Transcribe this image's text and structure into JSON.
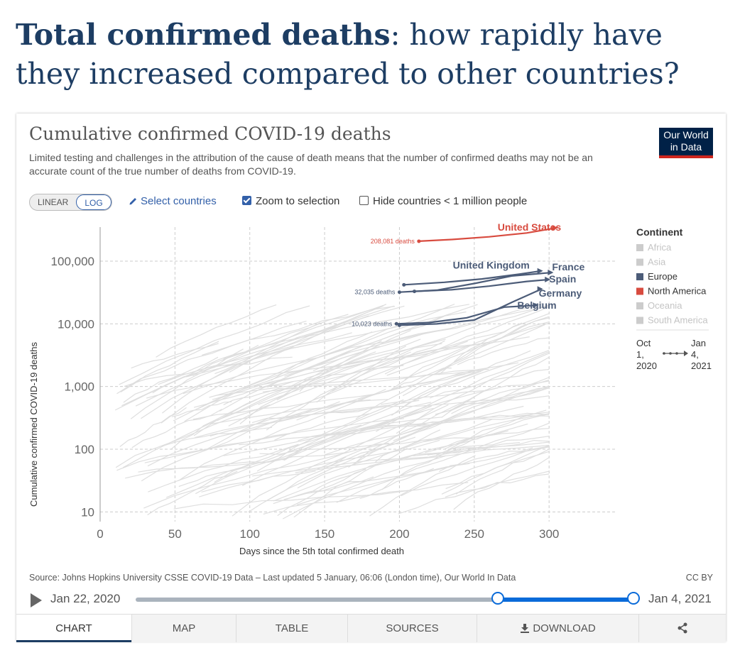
{
  "headline": {
    "bold": "Total confirmed deaths",
    "rest": ": how rapidly have they increased compared to other countries?"
  },
  "card": {
    "title": "Cumulative confirmed COVID-19 deaths",
    "subtitle": "Limited testing and challenges in the attribution of the cause of death means that the number of confirmed deaths may not be an accurate count of the true number of deaths from COVID-19.",
    "logo_line1": "Our World",
    "logo_line2": "in Data"
  },
  "controls": {
    "linear": "LINEAR",
    "log": "LOG",
    "select_countries": "Select countries",
    "zoom_to_selection": "Zoom to selection",
    "hide_small": "Hide countries < 1 million people"
  },
  "legend": {
    "title": "Continent",
    "items": [
      {
        "label": "Africa",
        "color": "#cccccc",
        "dimmed": true
      },
      {
        "label": "Asia",
        "color": "#cccccc",
        "dimmed": true
      },
      {
        "label": "Europe",
        "color": "#4c5c78",
        "dimmed": false
      },
      {
        "label": "North America",
        "color": "#d84b3f",
        "dimmed": false
      },
      {
        "label": "Oceania",
        "color": "#cccccc",
        "dimmed": true
      },
      {
        "label": "South America",
        "color": "#cccccc",
        "dimmed": true
      }
    ],
    "time_start_1": "Oct",
    "time_start_2": "1,",
    "time_start_3": "2020",
    "time_end_1": "Jan",
    "time_end_2": "4,",
    "time_end_3": "2021"
  },
  "chart_data": {
    "type": "line",
    "xlabel": "Days since the 5th total confirmed death",
    "ylabel": "Cumulative confirmed COVID-19 deaths",
    "x_scale": "linear",
    "y_scale": "log",
    "xlim": [
      0,
      345
    ],
    "ylim": [
      7,
      350000
    ],
    "x_ticks": [
      0,
      50,
      100,
      150,
      200,
      250,
      300
    ],
    "y_ticks": [
      10,
      100,
      1000,
      10000,
      100000
    ],
    "y_tick_labels": [
      "10",
      "100",
      "1,000",
      "10,000",
      "100,000"
    ],
    "grid": true,
    "legend_position": "right",
    "series": [
      {
        "name": "United States",
        "color": "#d84b3f",
        "points": [
          [
            213,
            208081
          ],
          [
            235,
            222000
          ],
          [
            260,
            245000
          ],
          [
            285,
            282000
          ],
          [
            305,
            340000
          ]
        ]
      },
      {
        "name": "United Kingdom",
        "color": "#4c5c78",
        "points": [
          [
            203,
            42000
          ],
          [
            230,
            46000
          ],
          [
            255,
            52000
          ],
          [
            280,
            62000
          ],
          [
            295,
            70000
          ]
        ]
      },
      {
        "name": "France",
        "color": "#4c5c78",
        "points": [
          [
            200,
            32035
          ],
          [
            225,
            34500
          ],
          [
            250,
            44000
          ],
          [
            275,
            58000
          ],
          [
            302,
            66000
          ]
        ]
      },
      {
        "name": "Spain",
        "color": "#4c5c78",
        "points": [
          [
            210,
            33000
          ],
          [
            235,
            35000
          ],
          [
            260,
            40000
          ],
          [
            285,
            47500
          ],
          [
            300,
            51000
          ]
        ]
      },
      {
        "name": "Germany",
        "color": "#4c5c78",
        "points": [
          [
            200,
            9500
          ],
          [
            225,
            10000
          ],
          [
            250,
            11500
          ],
          [
            275,
            22000
          ],
          [
            295,
            36000
          ]
        ]
      },
      {
        "name": "Belgium",
        "color": "#4c5c78",
        "points": [
          [
            198,
            10023
          ],
          [
            220,
            10500
          ],
          [
            245,
            12500
          ],
          [
            270,
            18500
          ],
          [
            292,
            19800
          ]
        ]
      }
    ],
    "annotations": [
      {
        "text": "208,081 deaths",
        "x": 213,
        "y": 208081
      },
      {
        "text": "32,035 deaths",
        "x": 200,
        "y": 32035
      },
      {
        "text": "10,023 deaths",
        "x": 198,
        "y": 10023
      }
    ]
  },
  "footer": {
    "source": "Source: Johns Hopkins University CSSE COVID-19 Data – Last updated 5 January, 06:06 (London time), Our World In Data",
    "license": "CC BY"
  },
  "timeline": {
    "start": "Jan 22, 2020",
    "end": "Jan 4, 2021",
    "selected_start_fraction": 0.725,
    "selected_end_fraction": 1.0
  },
  "tabs": [
    {
      "label": "CHART",
      "active": true
    },
    {
      "label": "MAP",
      "active": false
    },
    {
      "label": "TABLE",
      "active": false
    },
    {
      "label": "SOURCES",
      "active": false
    },
    {
      "label": "DOWNLOAD",
      "active": false
    },
    {
      "label": "",
      "active": false
    }
  ]
}
